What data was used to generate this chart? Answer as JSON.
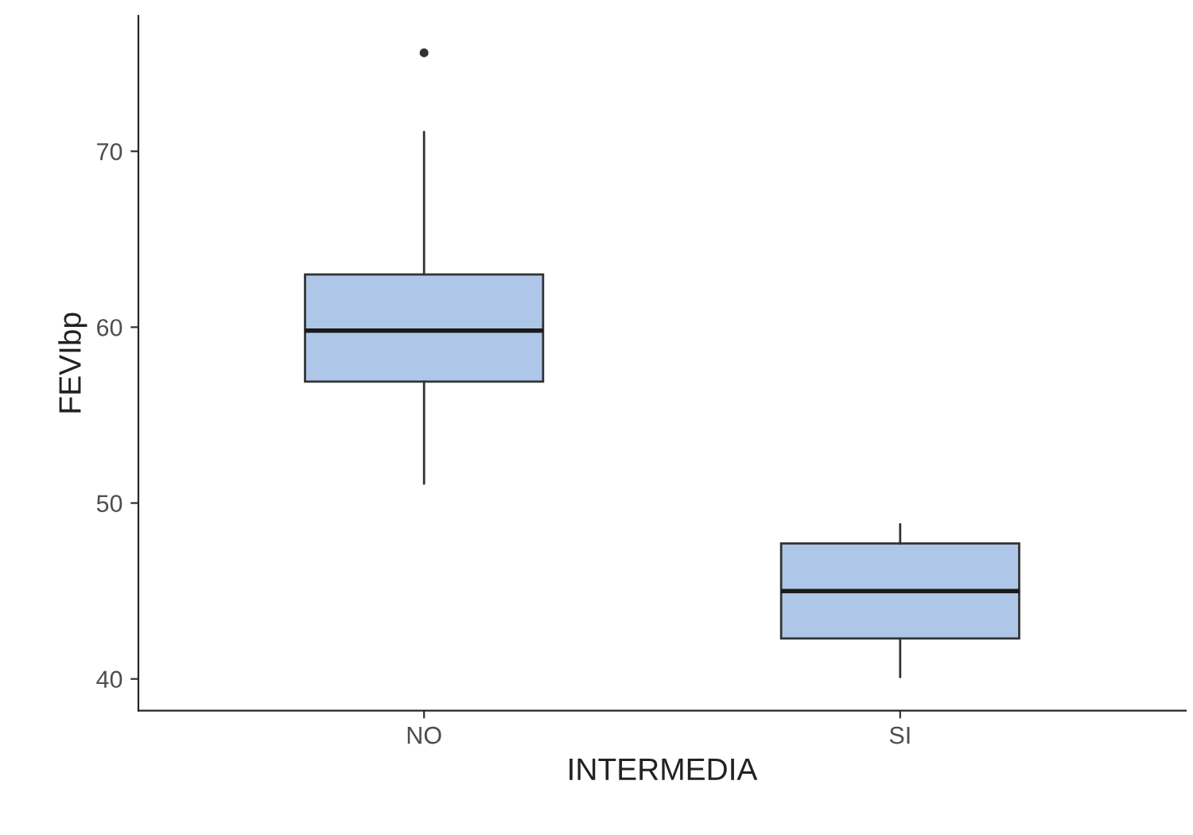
{
  "chart_data": {
    "type": "box",
    "xlabel": "INTERMEDIA",
    "ylabel": "FEVIbp",
    "categories": [
      "NO",
      "SI"
    ],
    "boxes": [
      {
        "low": 51.1,
        "q1": 56.9,
        "median": 59.8,
        "q3": 63.0,
        "high": 71.1,
        "outliers": [
          75.6
        ]
      },
      {
        "low": 40.1,
        "q1": 42.3,
        "median": 45.0,
        "q3": 47.7,
        "high": 48.8
      }
    ],
    "color": "#aec6e8",
    "ylim": [
      38.2,
      77.7
    ],
    "yticks": [
      40,
      50,
      60,
      70
    ],
    "grid": false,
    "legend": false
  }
}
